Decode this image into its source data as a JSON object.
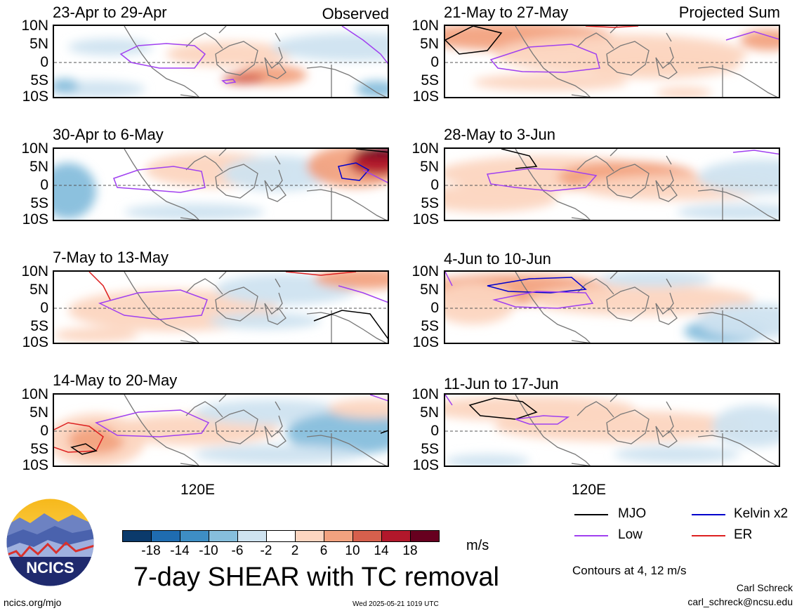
{
  "panels": [
    {
      "title": "23-Apr to 29-Apr",
      "label": "Observed"
    },
    {
      "title": "21-May to 27-May",
      "label": "Projected Sum"
    },
    {
      "title": "30-Apr to 6-May",
      "label": ""
    },
    {
      "title": "28-May to 3-Jun",
      "label": ""
    },
    {
      "title": "7-May to 13-May",
      "label": ""
    },
    {
      "title": "4-Jun to 10-Jun",
      "label": ""
    },
    {
      "title": "14-May to 20-May",
      "label": ""
    },
    {
      "title": "11-Jun to 17-Jun",
      "label": ""
    }
  ],
  "y_ticks": [
    "10N",
    "5N",
    "0",
    "5S",
    "10S"
  ],
  "x_tick": "120E",
  "colorbar": {
    "labels": [
      "-18",
      "-14",
      "-10",
      "-6",
      "-2",
      "2",
      "6",
      "10",
      "14",
      "18"
    ],
    "colors": [
      "#0b3a6b",
      "#1f6cb0",
      "#3e8ec4",
      "#86bedc",
      "#cfe3f0",
      "#ffffff",
      "#fcd5c0",
      "#f2a27f",
      "#d6604d",
      "#b2182b",
      "#67001f"
    ],
    "units": "m/s"
  },
  "main_title": "7-day SHEAR with TC removal",
  "legend": [
    {
      "label": "MJO",
      "color": "#000000"
    },
    {
      "label": "Kelvin x2",
      "color": "#0000cc"
    },
    {
      "label": "Low",
      "color": "#a040f0"
    },
    {
      "label": "ER",
      "color": "#dd2020"
    }
  ],
  "contours_note": "Contours at 4, 12 m/s",
  "author": "Carl Schreck",
  "email": "carl_schreck@ncsu.edu",
  "site": "ncics.org/mjo",
  "timestamp": "Wed 2025-05-21 1019 UTC",
  "logo_text": "NCICS"
}
